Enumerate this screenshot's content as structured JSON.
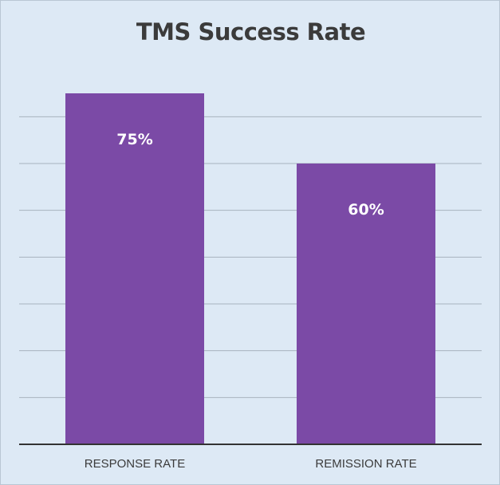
{
  "chart_data": {
    "type": "bar",
    "title": "TMS Success Rate",
    "categories": [
      "RESPONSE RATE",
      "REMISSION RATE"
    ],
    "values": [
      75,
      60
    ],
    "data_labels": [
      "75%",
      "60%"
    ],
    "ylim": [
      0,
      75
    ],
    "gridlines": [
      10,
      20,
      30,
      40,
      50,
      60,
      70
    ],
    "grid": true,
    "legend": "none",
    "colors": {
      "bar": "#7b4aa6",
      "background": "#dde9f5",
      "grid": "#a8b3be",
      "baseline": "#333333"
    }
  }
}
